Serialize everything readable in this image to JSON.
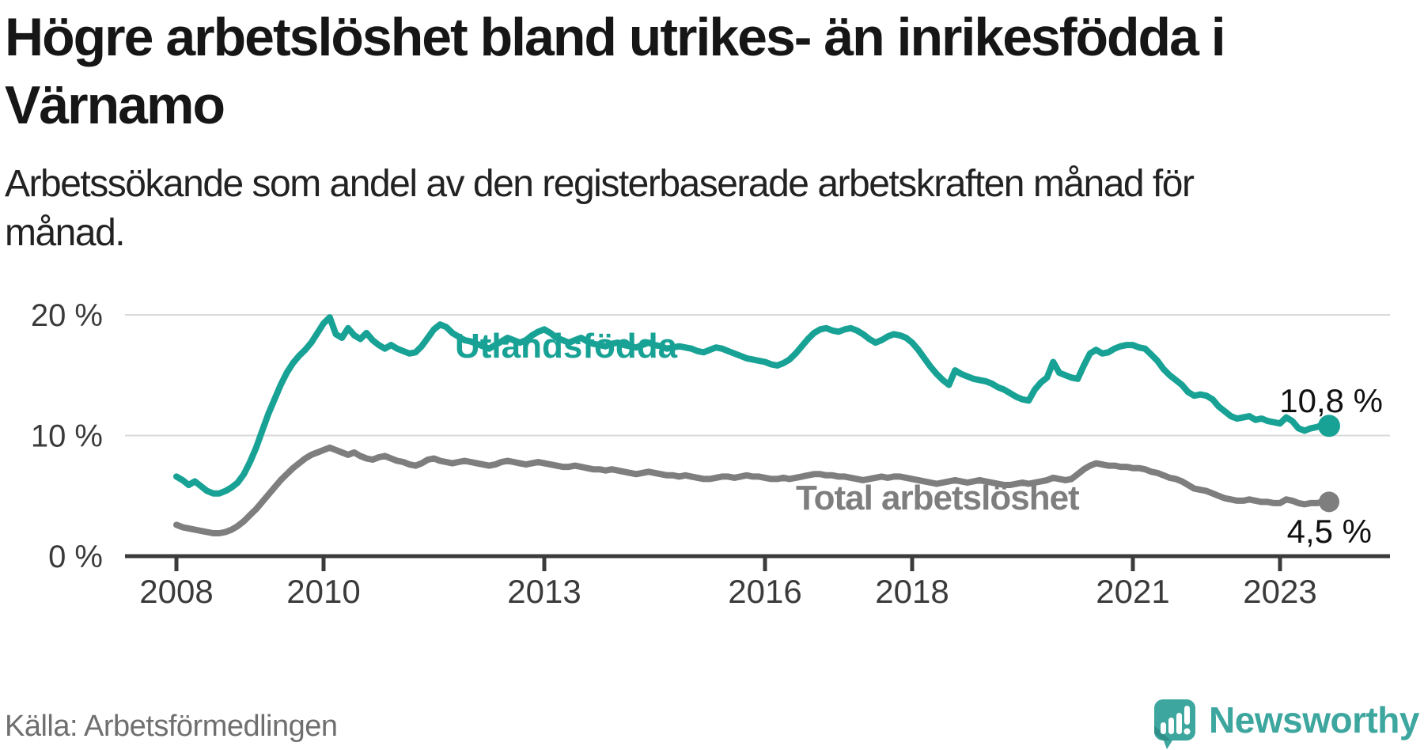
{
  "header": {
    "title_lines": [
      "Högre arbetslöshet bland utrikes- än inrikesfödda i",
      "Värnamo"
    ],
    "subtitle_lines": [
      "Arbetssökande som andel av den registerbaserade arbetskraften månad för",
      "månad."
    ]
  },
  "footer": {
    "source": "Källa: Arbetsförmedlingen",
    "brand": "Newsworthy"
  },
  "colors": {
    "accent_teal": "#18a295",
    "line_gray": "#7e7e7e",
    "axis": "#3b3b3b",
    "grid": "#d9d9d9",
    "value_label": "#111111",
    "brand_teal": "#3da69e",
    "brand_shade": "#2e8c85"
  },
  "chart_data": {
    "type": "line",
    "unit": "%",
    "frequency": "monthly",
    "x_start": "2008-01",
    "x_end": "2023-09",
    "grid": "horizontal-only",
    "legend_position": "inline-labels",
    "ylim": [
      0,
      21.5
    ],
    "x_tick_years": [
      2008,
      2010,
      2013,
      2016,
      2018,
      2021,
      2023
    ],
    "y_ticks": [
      {
        "value": 20,
        "label": "20 %"
      },
      {
        "value": 10,
        "label": "10 %"
      },
      {
        "value": 0,
        "label": "0 %"
      }
    ],
    "series": [
      {
        "name": "Utlandsfödda",
        "color": "#18a295",
        "end_label": "10,8 %",
        "last_value": 10.8,
        "values": [
          6.6,
          6.3,
          5.9,
          6.2,
          5.8,
          5.4,
          5.2,
          5.2,
          5.4,
          5.7,
          6.1,
          6.8,
          7.8,
          9.0,
          10.4,
          11.8,
          13.0,
          14.2,
          15.2,
          16.0,
          16.6,
          17.1,
          17.7,
          18.5,
          19.3,
          19.8,
          18.4,
          18.1,
          18.9,
          18.3,
          18.0,
          18.5,
          17.9,
          17.5,
          17.2,
          17.5,
          17.2,
          17.0,
          16.8,
          16.9,
          17.4,
          18.1,
          18.8,
          19.2,
          19.0,
          18.5,
          18.2,
          17.9,
          17.8,
          17.6,
          17.4,
          17.2,
          17.5,
          17.8,
          18.1,
          17.9,
          17.7,
          17.9,
          18.3,
          18.6,
          18.8,
          18.5,
          18.1,
          17.9,
          17.7,
          17.9,
          18.1,
          17.8,
          17.6,
          17.5,
          17.4,
          17.6,
          17.7,
          17.5,
          17.4,
          17.3,
          17.5,
          17.7,
          17.5,
          17.4,
          17.2,
          17.3,
          17.4,
          17.3,
          17.2,
          17.0,
          16.9,
          17.1,
          17.3,
          17.2,
          17.0,
          16.8,
          16.6,
          16.4,
          16.3,
          16.2,
          16.1,
          15.9,
          15.8,
          16.0,
          16.3,
          16.8,
          17.4,
          18.0,
          18.5,
          18.8,
          18.9,
          18.7,
          18.6,
          18.8,
          18.9,
          18.7,
          18.4,
          18.0,
          17.7,
          17.9,
          18.2,
          18.4,
          18.3,
          18.1,
          17.7,
          17.1,
          16.4,
          15.7,
          15.1,
          14.6,
          14.2,
          15.4,
          15.1,
          14.9,
          14.7,
          14.6,
          14.5,
          14.3,
          14.0,
          13.8,
          13.5,
          13.2,
          13.0,
          12.9,
          13.8,
          14.4,
          14.8,
          16.1,
          15.2,
          15.0,
          14.8,
          14.7,
          15.8,
          16.8,
          17.1,
          16.8,
          16.9,
          17.2,
          17.4,
          17.5,
          17.5,
          17.3,
          17.2,
          16.7,
          16.2,
          15.5,
          15.0,
          14.6,
          14.2,
          13.6,
          13.3,
          13.4,
          13.3,
          13.0,
          12.4,
          12.0,
          11.6,
          11.4,
          11.5,
          11.6,
          11.3,
          11.4,
          11.2,
          11.1,
          11.0,
          11.5,
          11.2,
          10.6,
          10.4,
          10.6,
          10.7,
          10.9,
          10.8
        ]
      },
      {
        "name": "Total arbetslöshet",
        "color": "#7e7e7e",
        "end_label": "4,5 %",
        "last_value": 4.5,
        "values": [
          2.6,
          2.4,
          2.3,
          2.2,
          2.1,
          2.0,
          1.9,
          1.9,
          2.0,
          2.2,
          2.5,
          2.9,
          3.4,
          3.9,
          4.5,
          5.1,
          5.7,
          6.3,
          6.8,
          7.3,
          7.7,
          8.1,
          8.4,
          8.6,
          8.8,
          9.0,
          8.8,
          8.6,
          8.4,
          8.6,
          8.3,
          8.1,
          8.0,
          8.2,
          8.3,
          8.1,
          7.9,
          7.8,
          7.6,
          7.5,
          7.7,
          8.0,
          8.1,
          7.9,
          7.8,
          7.7,
          7.8,
          7.9,
          7.8,
          7.7,
          7.6,
          7.5,
          7.6,
          7.8,
          7.9,
          7.8,
          7.7,
          7.6,
          7.7,
          7.8,
          7.7,
          7.6,
          7.5,
          7.4,
          7.4,
          7.5,
          7.4,
          7.3,
          7.2,
          7.2,
          7.1,
          7.2,
          7.1,
          7.0,
          6.9,
          6.8,
          6.9,
          7.0,
          6.9,
          6.8,
          6.7,
          6.7,
          6.6,
          6.7,
          6.6,
          6.5,
          6.4,
          6.4,
          6.5,
          6.6,
          6.6,
          6.5,
          6.6,
          6.7,
          6.6,
          6.6,
          6.5,
          6.4,
          6.4,
          6.5,
          6.4,
          6.5,
          6.6,
          6.7,
          6.8,
          6.8,
          6.7,
          6.7,
          6.6,
          6.6,
          6.5,
          6.4,
          6.3,
          6.4,
          6.5,
          6.6,
          6.5,
          6.6,
          6.6,
          6.5,
          6.4,
          6.3,
          6.2,
          6.1,
          6.0,
          6.1,
          6.2,
          6.3,
          6.2,
          6.1,
          6.2,
          6.3,
          6.2,
          6.1,
          6.0,
          5.9,
          5.9,
          6.0,
          6.1,
          6.0,
          6.1,
          6.2,
          6.3,
          6.5,
          6.4,
          6.3,
          6.4,
          6.8,
          7.2,
          7.5,
          7.7,
          7.6,
          7.5,
          7.5,
          7.4,
          7.4,
          7.3,
          7.3,
          7.2,
          7.0,
          6.9,
          6.7,
          6.5,
          6.4,
          6.2,
          5.9,
          5.6,
          5.5,
          5.4,
          5.2,
          5.0,
          4.8,
          4.7,
          4.6,
          4.6,
          4.7,
          4.6,
          4.5,
          4.5,
          4.4,
          4.4,
          4.7,
          4.6,
          4.4,
          4.3,
          4.4,
          4.4,
          4.5,
          4.5
        ]
      }
    ]
  }
}
